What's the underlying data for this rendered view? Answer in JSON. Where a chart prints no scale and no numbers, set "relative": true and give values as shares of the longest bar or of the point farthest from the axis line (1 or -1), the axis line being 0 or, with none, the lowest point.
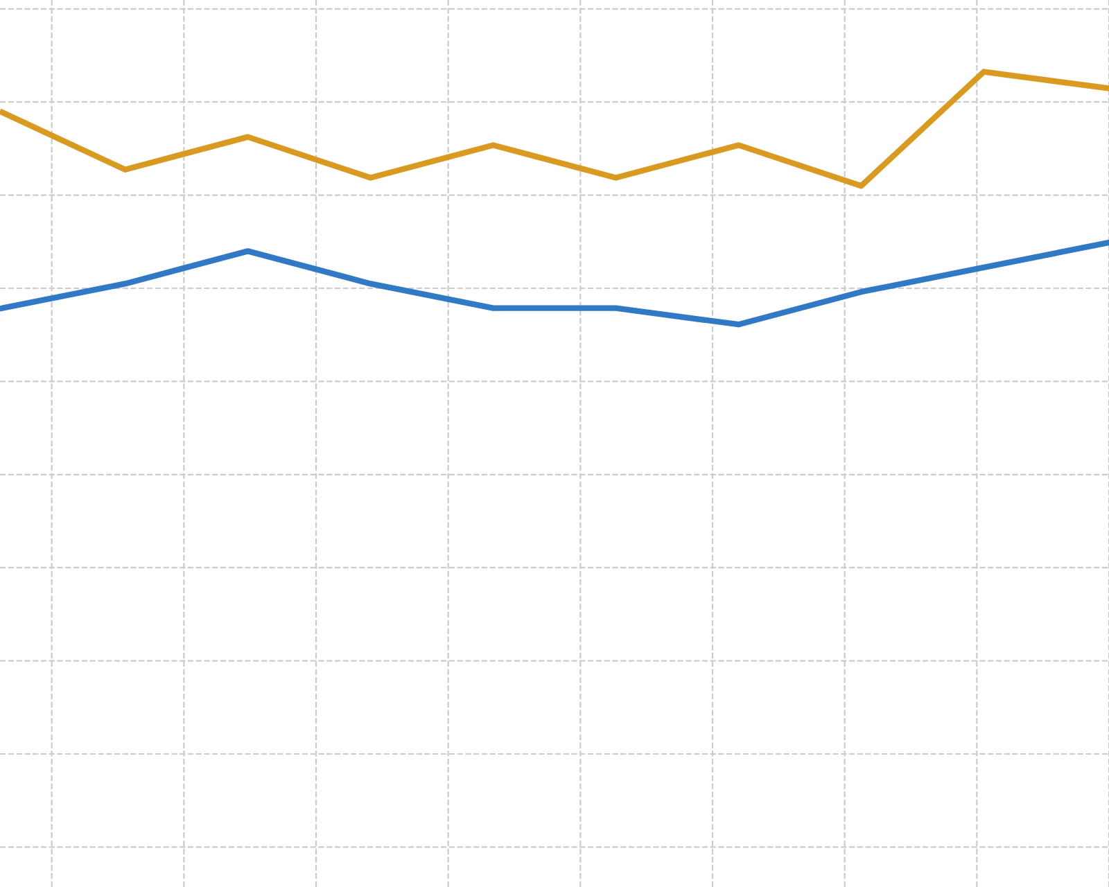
{
  "chart_data": {
    "type": "line",
    "relative": true,
    "grid": true,
    "categories": [
      null,
      null,
      null,
      null,
      null,
      null,
      null,
      null,
      null,
      null
    ],
    "series": [
      {
        "color": "#d99a22",
        "values": [
          0.95,
          0.88,
          0.92,
          0.87,
          0.91,
          0.87,
          0.91,
          0.86,
          1.0,
          0.98
        ]
      },
      {
        "color": "#3179c4",
        "values": [
          0.71,
          0.74,
          0.78,
          0.74,
          0.71,
          0.71,
          0.69,
          0.73,
          0.76,
          0.79
        ]
      }
    ]
  }
}
